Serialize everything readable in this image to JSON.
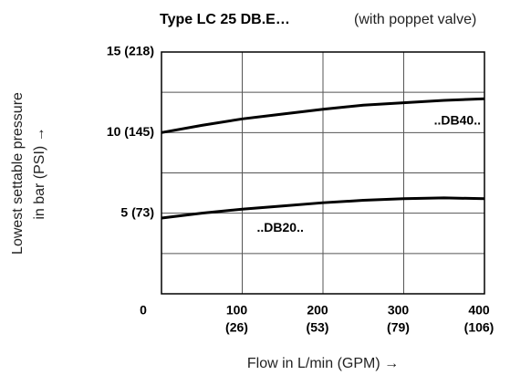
{
  "chart_data": {
    "type": "line",
    "title": "Type LC 25 DB.E…",
    "title_note": "(with poppet valve)",
    "ylabel": [
      "Lowest settable pressure",
      "in bar (PSI) →"
    ],
    "xlabel": "Flow in L/min (GPM) →",
    "x": [
      0,
      50,
      100,
      150,
      200,
      250,
      300,
      350,
      400
    ],
    "series": [
      {
        "name": "..DB40..",
        "color": "#000000",
        "values": [
          10,
          10.45,
          10.85,
          11.15,
          11.45,
          11.7,
          11.85,
          12.0,
          12.1
        ]
      },
      {
        "name": "..DB20..",
        "color": "#000000",
        "values": [
          4.7,
          5.0,
          5.25,
          5.45,
          5.65,
          5.8,
          5.9,
          5.95,
          5.9
        ]
      }
    ],
    "xlim": [
      0,
      400
    ],
    "xticks": [
      {
        "value": 0,
        "label": [
          "0"
        ]
      },
      {
        "value": 100,
        "label": [
          "100",
          "(26)"
        ]
      },
      {
        "value": 200,
        "label": [
          "200",
          "(53)"
        ]
      },
      {
        "value": 300,
        "label": [
          "300",
          "(79)"
        ]
      },
      {
        "value": 400,
        "label": [
          "400",
          "(106)"
        ]
      }
    ],
    "ylim": [
      0,
      15
    ],
    "yticks": [
      {
        "value": 5,
        "label": "5 (73)"
      },
      {
        "value": 10,
        "label": "10 (145)"
      },
      {
        "value": 15,
        "label": "15 (218)"
      }
    ],
    "ygrid": [
      2.5,
      7.5,
      12.5
    ],
    "grid": true
  }
}
